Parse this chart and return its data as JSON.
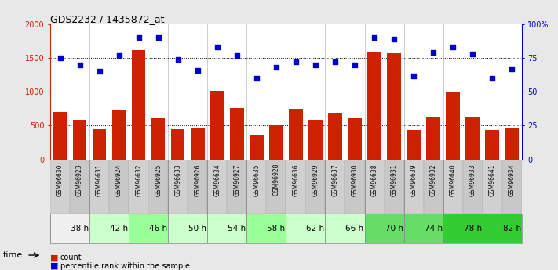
{
  "title": "GDS2232 / 1435872_at",
  "samples": [
    "GSM96630",
    "GSM96923",
    "GSM96631",
    "GSM96924",
    "GSM96632",
    "GSM96925",
    "GSM96633",
    "GSM96926",
    "GSM96634",
    "GSM96927",
    "GSM96635",
    "GSM96928",
    "GSM96636",
    "GSM96929",
    "GSM96637",
    "GSM96930",
    "GSM96638",
    "GSM96931",
    "GSM96639",
    "GSM96932",
    "GSM96640",
    "GSM96933",
    "GSM96641",
    "GSM96934"
  ],
  "counts": [
    700,
    590,
    450,
    730,
    1620,
    610,
    450,
    470,
    1010,
    760,
    370,
    500,
    750,
    590,
    690,
    610,
    1580,
    1570,
    440,
    620,
    1000,
    620,
    430,
    470
  ],
  "percentile": [
    75,
    70,
    65,
    77,
    90,
    90,
    74,
    66,
    83,
    77,
    60,
    68,
    72,
    70,
    72,
    70,
    90,
    89,
    62,
    79,
    83,
    78,
    60,
    67
  ],
  "time_groups": [
    {
      "label": "38 h",
      "start": 0,
      "end": 2,
      "color": "#f0f0f0"
    },
    {
      "label": "42 h",
      "start": 2,
      "end": 4,
      "color": "#ccffcc"
    },
    {
      "label": "46 h",
      "start": 4,
      "end": 6,
      "color": "#99ff99"
    },
    {
      "label": "50 h",
      "start": 6,
      "end": 8,
      "color": "#ccffcc"
    },
    {
      "label": "54 h",
      "start": 8,
      "end": 10,
      "color": "#ccffcc"
    },
    {
      "label": "58 h",
      "start": 10,
      "end": 12,
      "color": "#99ff99"
    },
    {
      "label": "62 h",
      "start": 12,
      "end": 14,
      "color": "#ccffcc"
    },
    {
      "label": "66 h",
      "start": 14,
      "end": 16,
      "color": "#ccffcc"
    },
    {
      "label": "70 h",
      "start": 16,
      "end": 18,
      "color": "#66dd66"
    },
    {
      "label": "74 h",
      "start": 18,
      "end": 20,
      "color": "#66dd66"
    },
    {
      "label": "78 h",
      "start": 20,
      "end": 22,
      "color": "#33cc33"
    },
    {
      "label": "82 h",
      "start": 22,
      "end": 24,
      "color": "#33cc33"
    }
  ],
  "bar_color": "#cc2200",
  "dot_color": "#0000cc",
  "ylim_left": [
    0,
    2000
  ],
  "ylim_right": [
    0,
    100
  ],
  "yticks_left": [
    0,
    500,
    1000,
    1500,
    2000
  ],
  "ytick_labels_left": [
    "0",
    "500",
    "1000",
    "1500",
    "2000"
  ],
  "yticks_right": [
    0,
    25,
    50,
    75,
    100
  ],
  "ytick_labels_right": [
    "0",
    "25",
    "50",
    "75",
    "100%"
  ],
  "bg_color": "#e8e8e8",
  "plot_bg": "#ffffff",
  "sample_bg": "#d8d8d8"
}
